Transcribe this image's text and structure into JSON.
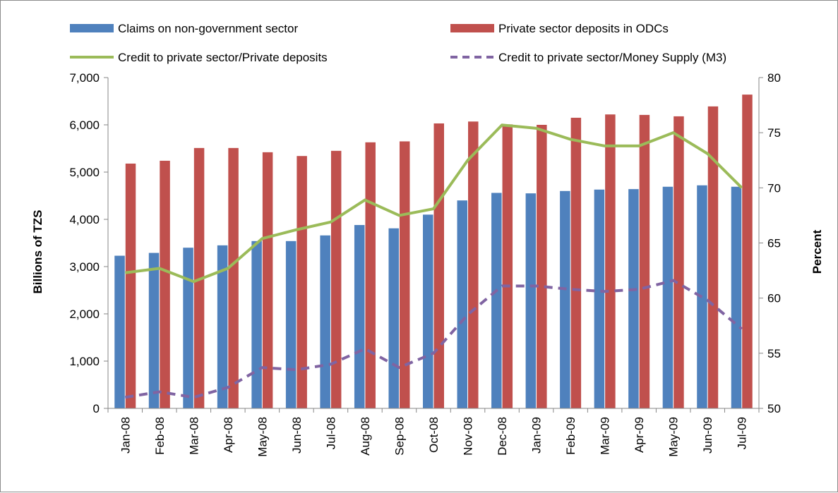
{
  "chart_data": {
    "type": "bar",
    "title": "",
    "categories": [
      "Jan-08",
      "Feb-08",
      "Mar-08",
      "Apr-08",
      "May-08",
      "Jun-08",
      "Jul-08",
      "Aug-08",
      "Sep-08",
      "Oct-08",
      "Nov-08",
      "Dec-08",
      "Jan-09",
      "Feb-09",
      "Mar-09",
      "Apr-09",
      "May-09",
      "Jun-09",
      "Jul-09"
    ],
    "ylabel": "Billions of TZS",
    "y2label": "Percent",
    "ylim": [
      0,
      7000
    ],
    "y2lim": [
      50,
      80
    ],
    "yticks": [
      "0",
      "1,000",
      "2,000",
      "3,000",
      "4,000",
      "5,000",
      "6,000",
      "7,000"
    ],
    "y2ticks": [
      "50",
      "55",
      "60",
      "65",
      "70",
      "75",
      "80"
    ],
    "grid": false,
    "legend_position": "top",
    "bar_series": [
      {
        "name": "Claims on non-government sector",
        "color": "#4f81bd",
        "values": [
          3230,
          3290,
          3400,
          3450,
          3540,
          3540,
          3660,
          3880,
          3810,
          4100,
          4400,
          4560,
          4550,
          4600,
          4630,
          4640,
          4690,
          4720,
          4690
        ]
      },
      {
        "name": "Private sector deposits in ODCs",
        "color": "#c0504d",
        "values": [
          5180,
          5240,
          5510,
          5510,
          5420,
          5340,
          5450,
          5630,
          5650,
          6030,
          6070,
          6010,
          6000,
          6150,
          6220,
          6210,
          6180,
          6390,
          6640
        ]
      }
    ],
    "line_series": [
      {
        "name": "Credit to private sector/Private deposits",
        "color": "#9bbb59",
        "style": "solid",
        "axis": "right",
        "values": [
          62.3,
          62.7,
          61.5,
          62.7,
          65.4,
          66.2,
          66.9,
          68.9,
          67.5,
          68.1,
          72.5,
          75.7,
          75.4,
          74.4,
          73.8,
          73.8,
          75.0,
          73.1,
          70.0
        ]
      },
      {
        "name": "Credit to private sector/Money Supply (M3)",
        "color": "#8064a2",
        "style": "dashed",
        "axis": "right",
        "values": [
          51.0,
          51.5,
          51.0,
          51.9,
          53.7,
          53.5,
          54.0,
          55.4,
          53.7,
          55.0,
          58.5,
          61.1,
          61.1,
          60.8,
          60.6,
          60.8,
          61.6,
          59.8,
          57.2
        ]
      }
    ]
  }
}
